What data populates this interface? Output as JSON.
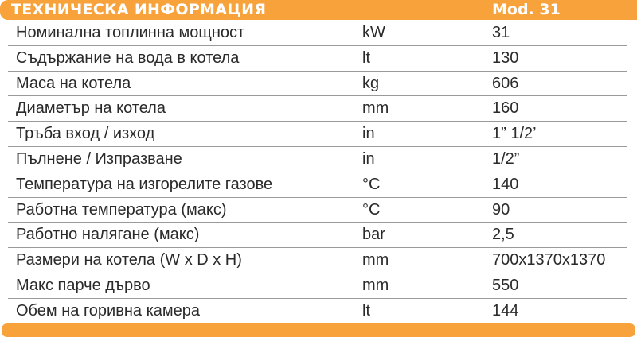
{
  "header": {
    "title": "ТЕХНИЧЕСКА ИНФОРМАЦИЯ",
    "model": "Mod. 31"
  },
  "colors": {
    "accent": "#f7a23b",
    "text": "#2a2a2a",
    "divider": "#9a9a9a"
  },
  "rows": [
    {
      "label": "Номинална топлинна мощност",
      "unit": "kW",
      "value": "31"
    },
    {
      "label": "Съдържание на вода в котела",
      "unit": "lt",
      "value": "130"
    },
    {
      "label": "Маса на котела",
      "unit": "kg",
      "value": "606"
    },
    {
      "label": "Диаметър на котела",
      "unit": "mm",
      "value": "160"
    },
    {
      "label": "Тръба вход / изход",
      "unit": "in",
      "value": "1” 1/2’"
    },
    {
      "label": "Пълнене / Изпразване",
      "unit": "in",
      "value": "1/2”"
    },
    {
      "label": "Температура на изгорелите газове",
      "unit": "°C",
      "value": "140"
    },
    {
      "label": "Работна температура (макс)",
      "unit": "°C",
      "value": "90"
    },
    {
      "label": "Работно налягане (макс)",
      "unit": "bar",
      "value": "2,5"
    },
    {
      "label": "Размери на котела (W x D x H)",
      "unit": "mm",
      "value": "700x1370x1370"
    },
    {
      "label": "Макс парче дърво",
      "unit": "mm",
      "value": "550"
    },
    {
      "label": "Обем на горивна камера",
      "unit": "lt",
      "value": "144"
    }
  ]
}
